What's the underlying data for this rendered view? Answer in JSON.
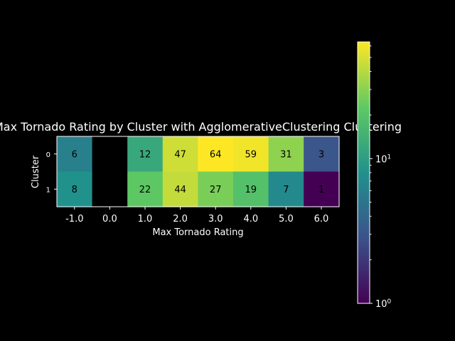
{
  "chart_data": {
    "type": "heatmap",
    "title": "Max Tornado Rating by Cluster with AgglomerativeClustering Clustering",
    "xlabel": "Max Tornado Rating",
    "ylabel": "Cluster",
    "x_categories": [
      "-1.0",
      "0.0",
      "1.0",
      "2.0",
      "3.0",
      "4.0",
      "5.0",
      "6.0"
    ],
    "y_categories": [
      "0",
      "1"
    ],
    "values": [
      [
        6,
        null,
        12,
        47,
        64,
        59,
        31,
        3
      ],
      [
        8,
        null,
        22,
        44,
        27,
        19,
        7,
        1
      ]
    ],
    "cell_labels": [
      [
        "6",
        "",
        "12",
        "47",
        "64",
        "59",
        "31",
        "3"
      ],
      [
        "8",
        "",
        "22",
        "44",
        "27",
        "19",
        "7",
        "1"
      ]
    ],
    "colormap": "viridis",
    "color_scale": "log",
    "color_range": [
      1,
      64
    ],
    "colorbar": {
      "ticks": [
        {
          "value": 1,
          "base": "10",
          "exp": "0"
        },
        {
          "value": 10,
          "base": "10",
          "exp": "1"
        }
      ]
    },
    "background_color": "#000000",
    "text_color": "#ffffff",
    "grid": false
  }
}
